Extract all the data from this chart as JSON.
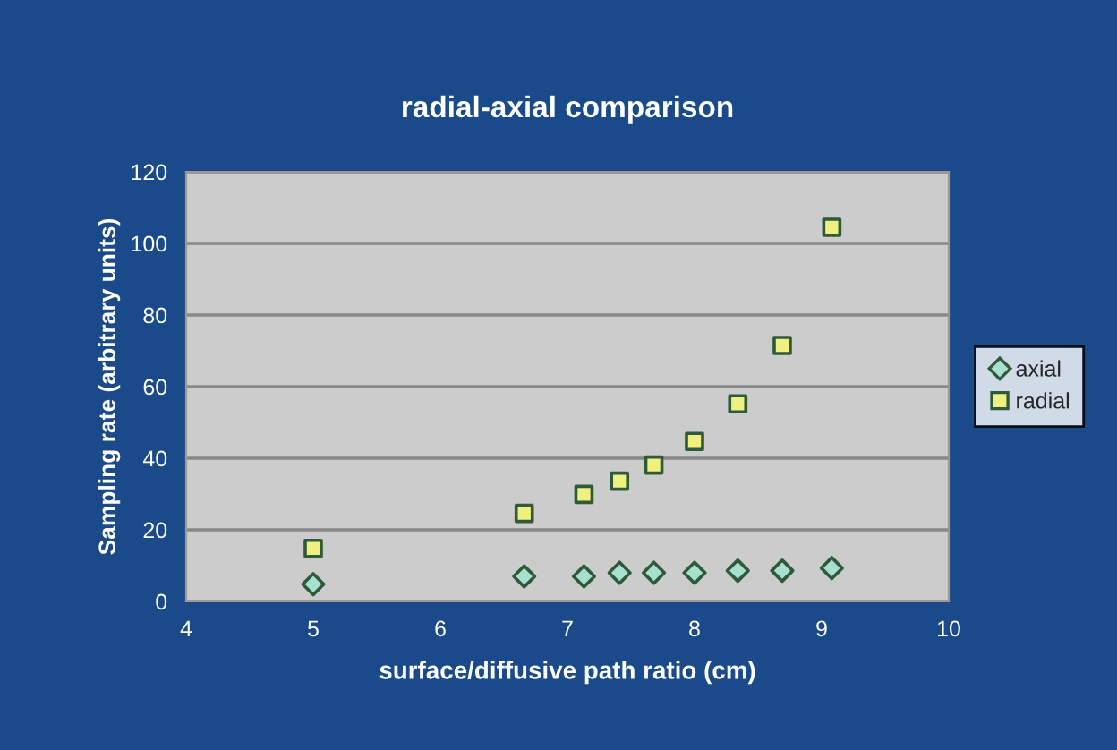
{
  "chart_data": {
    "type": "scatter",
    "title": "radial-axial comparison",
    "xlabel": "surface/diffusive path ratio (cm)",
    "ylabel": "Sampling rate (arbitrary units)",
    "xlim": [
      4,
      10
    ],
    "xticks": [
      4,
      5,
      6,
      7,
      8,
      9,
      10
    ],
    "ylim": [
      0,
      120
    ],
    "yticks": [
      0,
      20,
      40,
      60,
      80,
      100,
      120
    ],
    "grid": "y",
    "legend": "right",
    "x": [
      5.0,
      6.66,
      7.13,
      7.41,
      7.68,
      8.0,
      8.34,
      8.69,
      9.08
    ],
    "series": [
      {
        "name": "axial",
        "color": "#a8e0d0",
        "marker": "diamond",
        "values": [
          4.8,
          7.0,
          7.0,
          8.0,
          8.0,
          8.0,
          8.6,
          8.6,
          9.3
        ]
      },
      {
        "name": "radial",
        "color": "#f0f080",
        "marker": "square",
        "values": [
          14.8,
          24.6,
          29.9,
          33.6,
          38.1,
          44.7,
          55.2,
          71.5,
          104.5
        ]
      }
    ]
  }
}
